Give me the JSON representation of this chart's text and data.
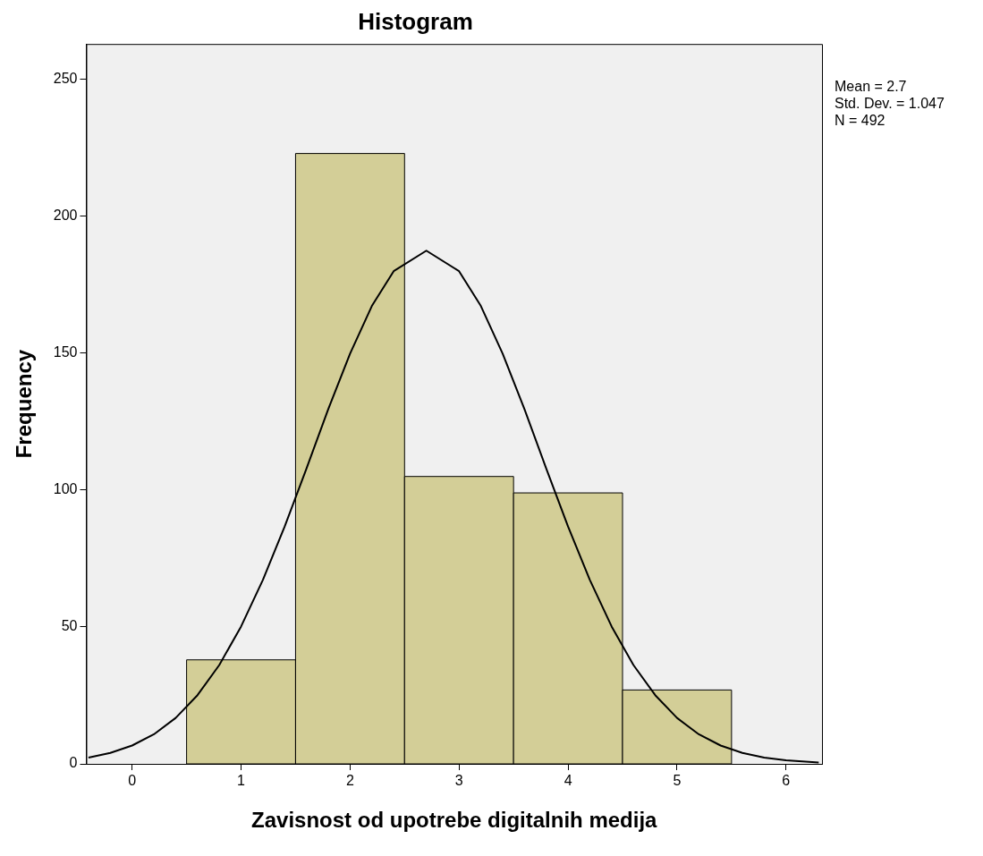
{
  "chart_data": {
    "type": "histogram",
    "title": "Histogram",
    "xlabel": "Zavisnost od upotrebe digitalnih medija",
    "ylabel": "Frequency",
    "bins": [
      0.5,
      1.5,
      2.5,
      3.5,
      4.5,
      5.5
    ],
    "values": [
      38,
      223,
      105,
      99,
      27
    ],
    "color": "#d3ce97",
    "series": [
      {
        "type": "line",
        "color": "#000000",
        "x": [
          -0.4,
          -0.2,
          0,
          0.2,
          0.4,
          0.6,
          0.8,
          1.0,
          1.2,
          1.4,
          1.6,
          1.8,
          2.0,
          2.2,
          2.4,
          2.7,
          3.0,
          3.2,
          3.4,
          3.6,
          3.8,
          4.0,
          4.2,
          4.4,
          4.6,
          4.8,
          5.0,
          5.2,
          5.4,
          5.6,
          5.8,
          6.0,
          6.3
        ],
        "values": [
          2.3,
          4.0,
          6.7,
          10.8,
          16.8,
          25.1,
          36.1,
          50.2,
          67.2,
          86.7,
          107.9,
          129.6,
          149.9,
          167.3,
          180.0,
          187.5,
          180.0,
          167.3,
          149.9,
          129.6,
          107.9,
          86.7,
          67.2,
          50.2,
          36.1,
          25.1,
          16.8,
          10.8,
          6.7,
          4.0,
          2.3,
          1.3,
          0.5
        ]
      }
    ],
    "xlim": [
      -0.42,
      6.33
    ],
    "xticks": [
      0,
      1,
      2,
      3,
      4,
      5,
      6
    ],
    "ylim": [
      0,
      263
    ],
    "yticks": [
      0,
      50,
      100,
      150,
      200,
      250
    ],
    "grid": false,
    "legend": false,
    "marker": "none",
    "line_style": "solid",
    "annotations": [
      "Mean = 2.7",
      "Std. Dev. = 1.047",
      "N = 492"
    ]
  }
}
